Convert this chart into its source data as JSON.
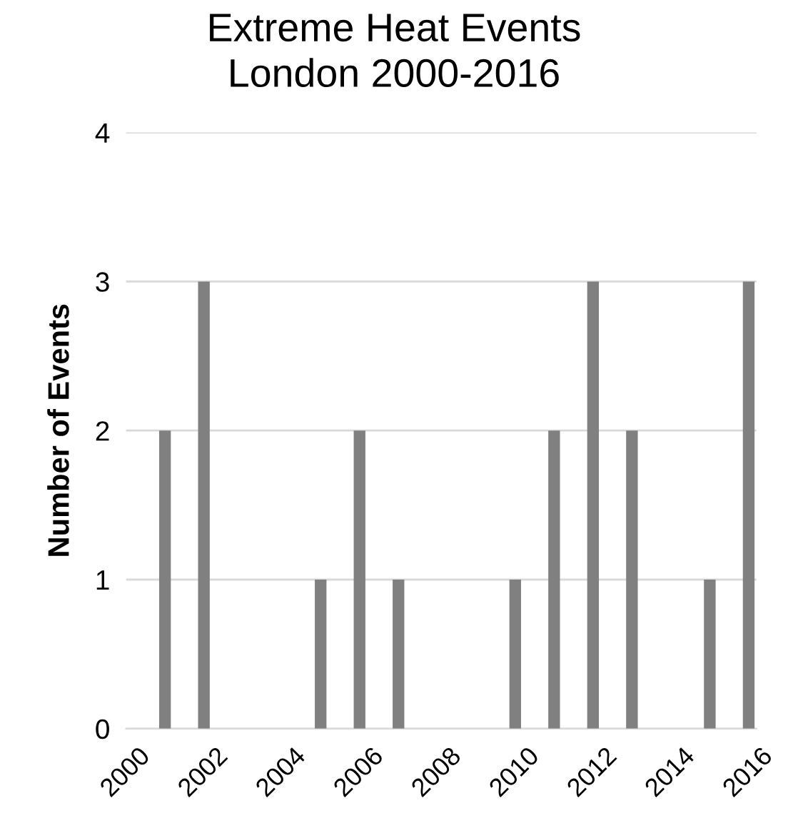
{
  "chart_data": {
    "type": "bar",
    "title": "Extreme Heat Events\nLondon 2000-2016",
    "ylabel": "Number of Events",
    "x": [
      2001,
      2002,
      2005,
      2006,
      2007,
      2010,
      2011,
      2012,
      2013,
      2015,
      2016
    ],
    "values": [
      2,
      3,
      1,
      2,
      1,
      1,
      2,
      3,
      2,
      1,
      3
    ],
    "color": "#808080",
    "xlim": [
      2000,
      2016.2
    ],
    "xticks": [
      2000,
      2002,
      2004,
      2006,
      2008,
      2010,
      2012,
      2014,
      2016
    ],
    "ylim": [
      0,
      4
    ],
    "yticks": [
      0,
      1,
      2,
      3,
      4
    ],
    "grid": "y"
  }
}
